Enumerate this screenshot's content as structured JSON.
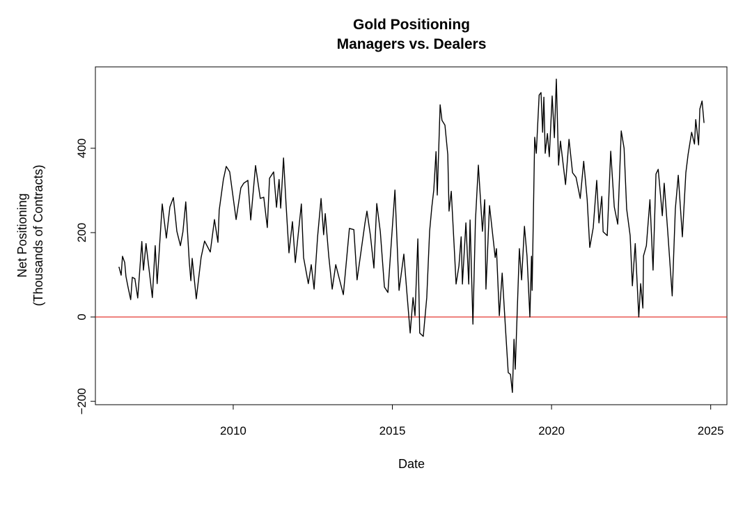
{
  "chart_data": {
    "type": "line",
    "title": "Gold Positioning",
    "subtitle": "Managers vs. Dealers",
    "xlabel": "Date",
    "ylabel": [
      "Net Positioning",
      "(Thousands of Contracts)"
    ],
    "xlim": [
      2005.67,
      2025.51
    ],
    "ylim": [
      -208,
      593
    ],
    "xticks": [
      2010,
      2015,
      2020,
      2025
    ],
    "xtick_labels": [
      "2010",
      "2015",
      "2020",
      "2025"
    ],
    "yticks": [
      -200,
      0,
      200,
      400
    ],
    "ytick_labels": [
      "-200",
      "0",
      "200",
      "400"
    ],
    "grid": false,
    "reference_line": {
      "y": 0,
      "color": "#e0201b"
    },
    "series": [
      {
        "name": "Net Positioning",
        "color": "#000000",
        "x": [
          2006.41,
          2006.48,
          2006.52,
          2006.59,
          2006.63,
          2006.7,
          2006.78,
          2006.83,
          2006.91,
          2007.0,
          2007.13,
          2007.18,
          2007.26,
          2007.37,
          2007.46,
          2007.55,
          2007.61,
          2007.77,
          2007.9,
          2008.01,
          2008.12,
          2008.23,
          2008.34,
          2008.42,
          2008.51,
          2008.62,
          2008.67,
          2008.71,
          2008.84,
          2008.99,
          2009.1,
          2009.28,
          2009.41,
          2009.52,
          2009.56,
          2009.69,
          2009.78,
          2009.89,
          2010.09,
          2010.24,
          2010.33,
          2010.46,
          2010.55,
          2010.7,
          2010.85,
          2010.96,
          2011.07,
          2011.14,
          2011.27,
          2011.36,
          2011.44,
          2011.49,
          2011.58,
          2011.66,
          2011.75,
          2011.86,
          2011.95,
          2012.14,
          2012.21,
          2012.36,
          2012.45,
          2012.54,
          2012.65,
          2012.76,
          2012.84,
          2012.89,
          2013.0,
          2013.11,
          2013.22,
          2013.46,
          2013.65,
          2013.79,
          2013.89,
          2014.14,
          2014.2,
          2014.31,
          2014.42,
          2014.51,
          2014.62,
          2014.75,
          2014.86,
          2014.97,
          2015.08,
          2015.21,
          2015.36,
          2015.45,
          2015.56,
          2015.65,
          2015.71,
          2015.8,
          2015.86,
          2015.97,
          2016.08,
          2016.17,
          2016.24,
          2016.3,
          2016.37,
          2016.41,
          2016.5,
          2016.56,
          2016.65,
          2016.74,
          2016.78,
          2016.85,
          2016.96,
          2017.0,
          2017.09,
          2017.16,
          2017.2,
          2017.31,
          2017.4,
          2017.44,
          2017.53,
          2017.61,
          2017.7,
          2017.83,
          2017.9,
          2017.94,
          2018.05,
          2018.23,
          2018.27,
          2018.36,
          2018.45,
          2018.56,
          2018.64,
          2018.71,
          2018.77,
          2018.82,
          2018.86,
          2018.99,
          2019.06,
          2019.15,
          2019.23,
          2019.32,
          2019.37,
          2019.39,
          2019.47,
          2019.52,
          2019.61,
          2019.67,
          2019.72,
          2019.76,
          2019.8,
          2019.87,
          2019.93,
          2020.02,
          2020.09,
          2020.15,
          2020.22,
          2020.28,
          2020.44,
          2020.55,
          2020.66,
          2020.77,
          2020.9,
          2021.01,
          2021.12,
          2021.2,
          2021.31,
          2021.42,
          2021.49,
          2021.58,
          2021.62,
          2021.75,
          2021.86,
          2021.97,
          2022.08,
          2022.19,
          2022.28,
          2022.36,
          2022.47,
          2022.54,
          2022.63,
          2022.74,
          2022.8,
          2022.87,
          2022.89,
          2022.98,
          2023.09,
          2023.19,
          2023.28,
          2023.35,
          2023.48,
          2023.54,
          2023.65,
          2023.79,
          2023.89,
          2023.98,
          2024.11,
          2024.22,
          2024.29,
          2024.4,
          2024.49,
          2024.53,
          2024.62,
          2024.66,
          2024.73,
          2024.79
        ],
        "y": [
          119,
          99,
          144,
          129,
          96,
          69,
          41,
          94,
          91,
          45,
          179,
          111,
          174,
          104,
          46,
          169,
          79,
          268,
          187,
          261,
          283,
          203,
          169,
          202,
          273,
          129,
          86,
          139,
          43,
          141,
          180,
          154,
          231,
          177,
          253,
          326,
          357,
          344,
          231,
          306,
          317,
          324,
          230,
          359,
          281,
          284,
          212,
          329,
          344,
          260,
          326,
          258,
          377,
          268,
          152,
          226,
          129,
          268,
          141,
          79,
          124,
          66,
          190,
          281,
          195,
          245,
          145,
          66,
          124,
          53,
          210,
          207,
          88,
          223,
          251,
          193,
          116,
          269,
          202,
          71,
          58,
          182,
          301,
          63,
          149,
          63,
          -38,
          46,
          3,
          185,
          -38,
          -46,
          46,
          203,
          261,
          301,
          392,
          289,
          503,
          466,
          455,
          385,
          251,
          298,
          141,
          78,
          121,
          190,
          78,
          223,
          78,
          230,
          -17,
          228,
          360,
          203,
          278,
          66,
          264,
          141,
          162,
          3,
          104,
          -36,
          -132,
          -136,
          -179,
          -53,
          -124,
          162,
          88,
          215,
          144,
          0,
          144,
          63,
          426,
          388,
          526,
          532,
          438,
          521,
          388,
          435,
          380,
          524,
          425,
          564,
          360,
          417,
          314,
          421,
          342,
          331,
          281,
          369,
          278,
          165,
          212,
          324,
          223,
          286,
          202,
          193,
          393,
          261,
          220,
          441,
          400,
          256,
          193,
          74,
          174,
          0,
          79,
          21,
          145,
          169,
          278,
          111,
          339,
          350,
          240,
          317,
          202,
          50,
          256,
          336,
          190,
          342,
          385,
          438,
          410,
          468,
          408,
          493,
          512,
          460
        ]
      }
    ]
  }
}
